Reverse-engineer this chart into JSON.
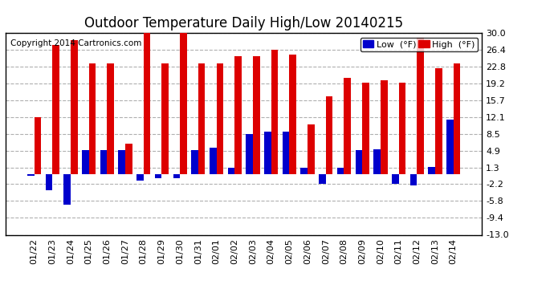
{
  "title": "Outdoor Temperature Daily High/Low 20140215",
  "copyright": "Copyright 2014 Cartronics.com",
  "legend_low": "Low  (°F)",
  "legend_high": "High  (°F)",
  "dates": [
    "01/22",
    "01/23",
    "01/24",
    "01/25",
    "01/26",
    "01/27",
    "01/28",
    "01/29",
    "01/30",
    "01/31",
    "02/01",
    "02/02",
    "02/03",
    "02/04",
    "02/05",
    "02/06",
    "02/07",
    "02/08",
    "02/09",
    "02/10",
    "02/11",
    "02/12",
    "02/13",
    "02/14"
  ],
  "highs": [
    12.1,
    27.5,
    28.5,
    23.5,
    23.5,
    6.5,
    31.0,
    23.5,
    31.0,
    23.5,
    23.5,
    25.0,
    25.0,
    26.4,
    25.5,
    10.5,
    16.5,
    20.5,
    19.5,
    20.0,
    19.5,
    29.0,
    22.5,
    23.5
  ],
  "lows": [
    -0.5,
    -3.5,
    -6.5,
    5.0,
    5.0,
    5.0,
    -1.5,
    -1.0,
    -1.0,
    5.0,
    5.5,
    1.3,
    8.5,
    9.0,
    9.0,
    1.3,
    -2.2,
    1.3,
    5.0,
    5.2,
    -2.2,
    -2.5,
    1.5,
    11.5
  ],
  "bar_width": 0.38,
  "high_color": "#dd0000",
  "low_color": "#0000cc",
  "background_color": "#ffffff",
  "grid_color": "#b0b0b0",
  "border_color": "#000000",
  "ylim_min": -13.0,
  "ylim_max": 30.0,
  "yticks": [
    -13.0,
    -9.4,
    -5.8,
    -2.2,
    1.3,
    4.9,
    8.5,
    12.1,
    15.7,
    19.2,
    22.8,
    26.4,
    30.0
  ],
  "title_fontsize": 12,
  "copyright_fontsize": 7.5,
  "tick_fontsize": 8,
  "legend_fontsize": 8
}
